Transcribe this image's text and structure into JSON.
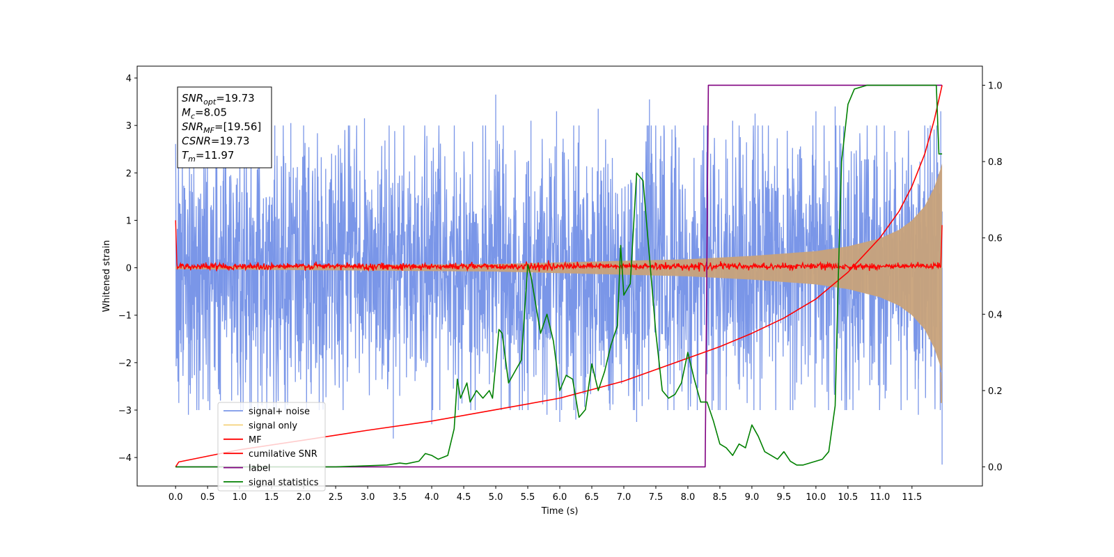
{
  "chart_data": {
    "type": "line",
    "title": "",
    "xlabel": "Time (s)",
    "ylabel": "Whitened strain",
    "y2label": "",
    "xlim": [
      -0.6,
      12.6
    ],
    "ylim": [
      -4.6,
      4.25
    ],
    "y2lim": [
      -0.05,
      1.05
    ],
    "x_ticks": [
      0.0,
      0.5,
      1.0,
      1.5,
      2.0,
      2.5,
      3.0,
      3.5,
      4.0,
      4.5,
      5.0,
      5.5,
      6.0,
      6.5,
      7.0,
      7.5,
      8.0,
      8.5,
      9.0,
      9.5,
      10.0,
      10.5,
      11.0,
      11.5
    ],
    "x_tick_labels": [
      "0.0",
      "0.5",
      "1.0",
      "1.5",
      "2.0",
      "2.5",
      "3.0",
      "3.5",
      "4.0",
      "4.5",
      "5.0",
      "5.5",
      "6.0",
      "6.5",
      "7.0",
      "7.5",
      "8.0",
      "8.5",
      "9.0",
      "9.5",
      "10.0",
      "10.5",
      "11.0",
      "11.5"
    ],
    "y_ticks": [
      4,
      3,
      2,
      1,
      0,
      -1,
      -2,
      -3,
      -4
    ],
    "y_tick_labels": [
      "4",
      "3",
      "2",
      "1",
      "0",
      "−1",
      "−2",
      "−3",
      "−4"
    ],
    "y2_ticks": [
      1.0,
      0.8,
      0.6,
      0.4,
      0.2,
      0.0
    ],
    "y2_tick_labels": [
      "1.0",
      "0.8",
      "0.6",
      "0.4",
      "0.2",
      "0.0"
    ],
    "grid": false,
    "legend_position": "lower-left",
    "colors": {
      "signal_noise": "#7a96e8",
      "signal_only": "#c8a27a",
      "mf": "#ff0000",
      "cumulative": "#ff0000",
      "label": "#800080",
      "statistics": "#008000"
    },
    "annotation": {
      "lines": [
        {
          "sym": "SNR",
          "sub": "opt",
          "value": "=19.73"
        },
        {
          "sym": "M",
          "sub": "c",
          "value": "=8.05"
        },
        {
          "sym": "SNR",
          "sub": "MF",
          "value": "=[19.56]"
        },
        {
          "sym": "CSNR",
          "sub": "",
          "value": "=19.73"
        },
        {
          "sym": "T",
          "sub": "m",
          "value": "=11.97"
        }
      ]
    },
    "legend": [
      {
        "label": "signal+ noise",
        "color": "#7a96e8"
      },
      {
        "label": "signal only",
        "color": "#f5d27a"
      },
      {
        "label": "MF",
        "color": "#ff0000"
      },
      {
        "label": "cumilative SNR",
        "color": "#ff0000"
      },
      {
        "label": "label",
        "color": "#800080"
      },
      {
        "label": "signal statistics",
        "color": "#008000"
      }
    ],
    "signal_noise": {
      "x_range": [
        0.0,
        11.97
      ],
      "core_amplitude": 1.6,
      "peak_amplitude": 3.7,
      "min_value": -4.15
    },
    "signal_only": {
      "envelope": [
        [
          0.0,
          0.03
        ],
        [
          5.0,
          0.08
        ],
        [
          8.0,
          0.18
        ],
        [
          9.0,
          0.25
        ],
        [
          10.0,
          0.35
        ],
        [
          10.5,
          0.45
        ],
        [
          11.0,
          0.62
        ],
        [
          11.3,
          0.8
        ],
        [
          11.5,
          1.0
        ],
        [
          11.7,
          1.3
        ],
        [
          11.85,
          1.7
        ],
        [
          11.95,
          2.1
        ],
        [
          11.97,
          2.2
        ]
      ]
    },
    "mf": {
      "baseline": 0.03,
      "start_value": 1.0,
      "end_value": 0.9
    },
    "cumulative_snr": {
      "points": [
        [
          0.0,
          0.0
        ],
        [
          0.05,
          0.013
        ],
        [
          1.0,
          0.045
        ],
        [
          2.0,
          0.07
        ],
        [
          3.0,
          0.096
        ],
        [
          4.0,
          0.12
        ],
        [
          5.0,
          0.15
        ],
        [
          6.0,
          0.18
        ],
        [
          7.0,
          0.225
        ],
        [
          8.0,
          0.285
        ],
        [
          8.5,
          0.315
        ],
        [
          9.0,
          0.35
        ],
        [
          9.5,
          0.39
        ],
        [
          10.0,
          0.44
        ],
        [
          10.5,
          0.51
        ],
        [
          11.0,
          0.6
        ],
        [
          11.3,
          0.67
        ],
        [
          11.5,
          0.735
        ],
        [
          11.7,
          0.82
        ],
        [
          11.85,
          0.91
        ],
        [
          11.97,
          1.0
        ]
      ]
    },
    "label_series": {
      "points": [
        [
          0.0,
          0.0
        ],
        [
          8.27,
          0.0
        ],
        [
          8.32,
          1.0
        ],
        [
          11.97,
          1.0
        ]
      ]
    },
    "signal_statistics": {
      "points": [
        [
          0.0,
          0.0
        ],
        [
          0.5,
          0.0
        ],
        [
          1.0,
          0.0
        ],
        [
          2.5,
          0.0
        ],
        [
          3.0,
          0.003
        ],
        [
          3.3,
          0.005
        ],
        [
          3.5,
          0.01
        ],
        [
          3.6,
          0.008
        ],
        [
          3.8,
          0.015
        ],
        [
          3.9,
          0.035
        ],
        [
          4.0,
          0.03
        ],
        [
          4.1,
          0.02
        ],
        [
          4.25,
          0.03
        ],
        [
          4.35,
          0.1
        ],
        [
          4.4,
          0.23
        ],
        [
          4.45,
          0.18
        ],
        [
          4.55,
          0.22
        ],
        [
          4.6,
          0.17
        ],
        [
          4.7,
          0.2
        ],
        [
          4.8,
          0.18
        ],
        [
          4.9,
          0.2
        ],
        [
          4.95,
          0.18
        ],
        [
          5.05,
          0.36
        ],
        [
          5.1,
          0.35
        ],
        [
          5.2,
          0.22
        ],
        [
          5.3,
          0.25
        ],
        [
          5.4,
          0.28
        ],
        [
          5.5,
          0.53
        ],
        [
          5.55,
          0.5
        ],
        [
          5.7,
          0.35
        ],
        [
          5.8,
          0.4
        ],
        [
          5.9,
          0.33
        ],
        [
          6.0,
          0.2
        ],
        [
          6.1,
          0.24
        ],
        [
          6.2,
          0.23
        ],
        [
          6.3,
          0.13
        ],
        [
          6.4,
          0.15
        ],
        [
          6.5,
          0.27
        ],
        [
          6.6,
          0.2
        ],
        [
          6.7,
          0.25
        ],
        [
          6.8,
          0.32
        ],
        [
          6.9,
          0.37
        ],
        [
          6.95,
          0.58
        ],
        [
          7.0,
          0.45
        ],
        [
          7.1,
          0.48
        ],
        [
          7.2,
          0.77
        ],
        [
          7.3,
          0.75
        ],
        [
          7.4,
          0.55
        ],
        [
          7.5,
          0.35
        ],
        [
          7.6,
          0.2
        ],
        [
          7.7,
          0.18
        ],
        [
          7.8,
          0.19
        ],
        [
          7.9,
          0.22
        ],
        [
          8.0,
          0.3
        ],
        [
          8.1,
          0.23
        ],
        [
          8.2,
          0.17
        ],
        [
          8.3,
          0.17
        ],
        [
          8.4,
          0.12
        ],
        [
          8.5,
          0.06
        ],
        [
          8.6,
          0.05
        ],
        [
          8.7,
          0.03
        ],
        [
          8.8,
          0.06
        ],
        [
          8.9,
          0.05
        ],
        [
          9.0,
          0.11
        ],
        [
          9.1,
          0.08
        ],
        [
          9.2,
          0.04
        ],
        [
          9.3,
          0.03
        ],
        [
          9.4,
          0.02
        ],
        [
          9.5,
          0.04
        ],
        [
          9.6,
          0.015
        ],
        [
          9.7,
          0.005
        ],
        [
          9.8,
          0.005
        ],
        [
          9.9,
          0.01
        ],
        [
          10.0,
          0.015
        ],
        [
          10.1,
          0.02
        ],
        [
          10.2,
          0.04
        ],
        [
          10.3,
          0.16
        ],
        [
          10.35,
          0.5
        ],
        [
          10.4,
          0.8
        ],
        [
          10.5,
          0.95
        ],
        [
          10.6,
          0.99
        ],
        [
          10.8,
          1.0
        ],
        [
          11.5,
          1.0
        ],
        [
          11.88,
          1.0
        ],
        [
          11.92,
          0.82
        ],
        [
          11.97,
          0.82
        ]
      ]
    }
  }
}
